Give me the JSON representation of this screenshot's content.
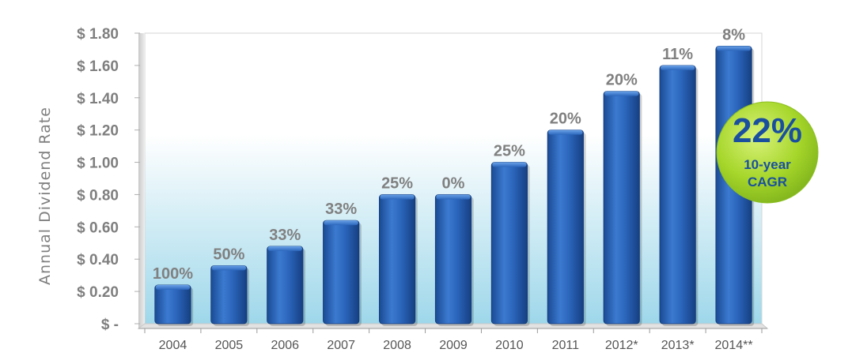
{
  "chart_data": {
    "type": "bar",
    "title": "",
    "xlabel": "",
    "ylabel": "Annual Dividend Rate",
    "categories": [
      "2004",
      "2005",
      "2006",
      "2007",
      "2008",
      "2009",
      "2010",
      "2011",
      "2012*",
      "2013*",
      "2014**"
    ],
    "values": [
      0.24,
      0.36,
      0.48,
      0.64,
      0.8,
      0.8,
      1.0,
      1.2,
      1.44,
      1.6,
      1.72
    ],
    "data_labels": [
      "100%",
      "50%",
      "33%",
      "33%",
      "25%",
      "0%",
      "25%",
      "20%",
      "20%",
      "11%",
      "8%"
    ],
    "ylim": [
      0,
      1.8
    ],
    "yticks": [
      {
        "value": 0,
        "label": "$ -"
      },
      {
        "value": 0.2,
        "label": "$ 0.20"
      },
      {
        "value": 0.4,
        "label": "$ 0.40"
      },
      {
        "value": 0.6,
        "label": "$ 0.60"
      },
      {
        "value": 0.8,
        "label": "$ 0.80"
      },
      {
        "value": 1.0,
        "label": "$ 1.00"
      },
      {
        "value": 1.2,
        "label": "$ 1.20"
      },
      {
        "value": 1.4,
        "label": "$ 1.40"
      },
      {
        "value": 1.6,
        "label": "$ 1.60"
      },
      {
        "value": 1.8,
        "label": "$ 1.80"
      }
    ],
    "grid": false,
    "bar_color": "#2563b8",
    "annotation": {
      "value": "22%",
      "line1": "10-year",
      "line2": "CAGR",
      "color": "#a6d62a",
      "text_color": "#1a4fa0"
    }
  }
}
